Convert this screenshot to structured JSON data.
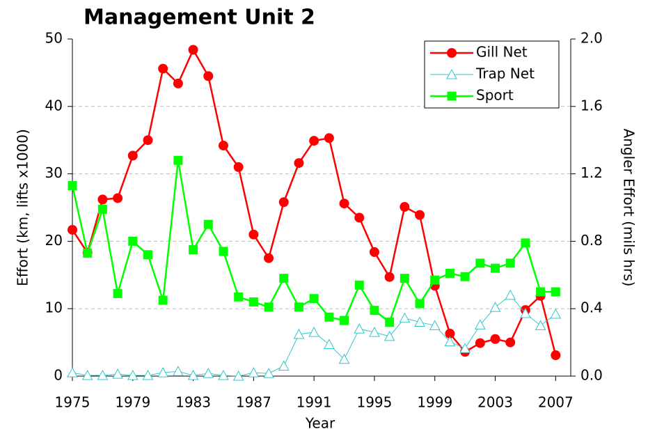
{
  "chart_data": {
    "type": "line",
    "title": "Management Unit 2",
    "x_label": "Year",
    "y_label": "Effort (km, lifts x1000)",
    "y2_label": "Angler Effort (mils hrs)",
    "x": [
      1975,
      1976,
      1977,
      1978,
      1979,
      1980,
      1981,
      1982,
      1983,
      1984,
      1985,
      1986,
      1987,
      1988,
      1989,
      1990,
      1991,
      1992,
      1993,
      1994,
      1995,
      1996,
      1997,
      1998,
      1999,
      2000,
      2001,
      2002,
      2003,
      2004,
      2005,
      2006,
      2007
    ],
    "xlim": [
      1975,
      2008
    ],
    "xticks": [
      1975,
      1979,
      1983,
      1987,
      1991,
      1995,
      1999,
      2003,
      2007
    ],
    "ylim": [
      0,
      50
    ],
    "yticks": [
      0,
      10,
      20,
      30,
      40,
      50
    ],
    "y2lim": [
      0,
      2
    ],
    "y2ticks": [
      {
        "value": 0,
        "label": "0.0"
      },
      0.4,
      0.8,
      1.2,
      1.6,
      {
        "value": 2,
        "label": "2.0"
      }
    ],
    "grid": true,
    "legend": "upper right",
    "series": [
      {
        "name": "Gill Net",
        "color": "#ff0000",
        "marker": "circle",
        "values": [
          21.7,
          18.3,
          26.2,
          26.4,
          32.7,
          35.0,
          45.6,
          43.4,
          48.4,
          44.5,
          34.2,
          31.0,
          21.0,
          17.5,
          25.8,
          31.6,
          34.9,
          35.3,
          25.6,
          23.5,
          18.4,
          14.7,
          25.1,
          23.9,
          13.4,
          6.3,
          3.6,
          4.9,
          5.5,
          5.0,
          9.8,
          11.9,
          3.1
        ]
      },
      {
        "name": "Trap Net",
        "color": "#33c6cc",
        "marker": "triangle",
        "values": [
          0.5,
          0.1,
          0.1,
          0.3,
          0.1,
          0.1,
          0.5,
          0.7,
          0.1,
          0.4,
          0.1,
          0.0,
          0.5,
          0.4,
          1.5,
          6.2,
          6.5,
          4.7,
          2.5,
          7.0,
          6.5,
          5.9,
          8.6,
          8.0,
          7.5,
          5.1,
          4.1,
          7.6,
          10.2,
          12.0,
          9.3,
          7.5,
          9.2
        ]
      },
      {
        "name": "Sport",
        "color": "#00ff00",
        "marker": "square",
        "axis": "y2",
        "values": [
          1.13,
          0.73,
          0.99,
          0.49,
          0.8,
          0.72,
          0.45,
          1.28,
          0.75,
          0.9,
          0.74,
          0.47,
          0.44,
          0.41,
          0.58,
          0.41,
          0.46,
          0.35,
          0.33,
          0.54,
          0.39,
          0.32,
          0.58,
          0.43,
          0.57,
          0.61,
          0.59,
          0.67,
          0.64,
          0.67,
          0.79,
          0.5,
          0.5
        ]
      }
    ]
  }
}
